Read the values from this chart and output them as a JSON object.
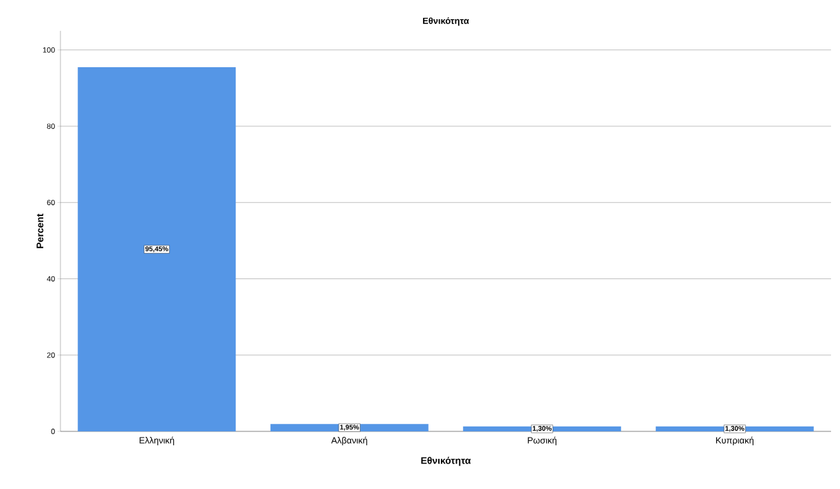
{
  "chart_data": {
    "type": "bar",
    "title": "Εθνικότητα",
    "xlabel": "Εθνικότητα",
    "ylabel": "Percent",
    "categories": [
      "Ελληνική",
      "Αλβανική",
      "Ρωσική",
      "Κυπριακή"
    ],
    "values": [
      95.45,
      1.95,
      1.3,
      1.3
    ],
    "value_labels": [
      "95,45%",
      "1,95%",
      "1,30%",
      "1,30%"
    ],
    "color": "#5596e6",
    "ylim": [
      0,
      105
    ],
    "yticks": [
      0,
      20,
      40,
      60,
      80,
      100
    ],
    "grid": "y"
  }
}
